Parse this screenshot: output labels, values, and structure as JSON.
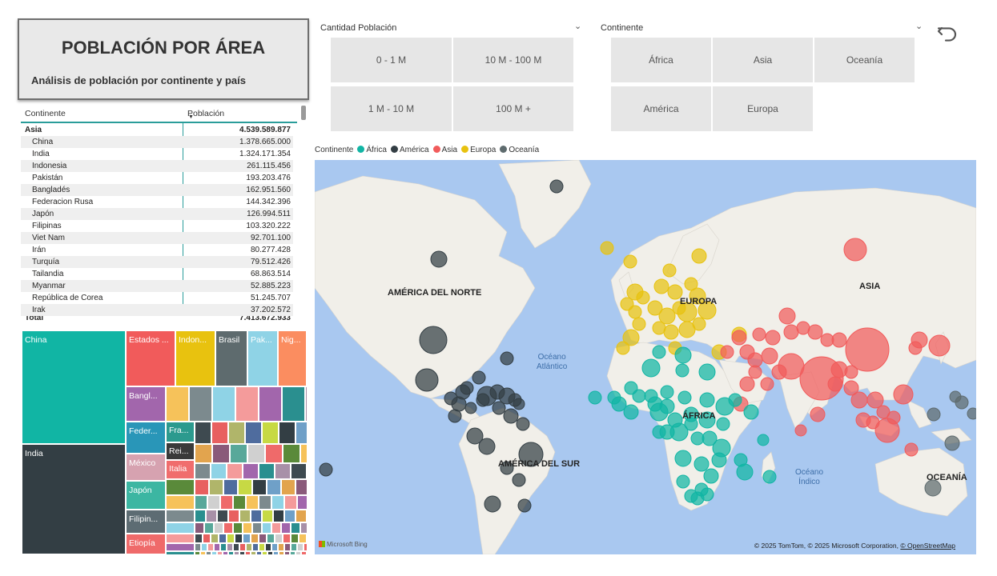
{
  "title": {
    "main": "POBLACIÓN POR ÁREA",
    "subtitle": "Análisis de población por continente y país"
  },
  "matrix": {
    "col_continent": "Continente",
    "col_population": "Población",
    "group": {
      "name": "Asia",
      "value": "4.539.589.877"
    },
    "rows": [
      {
        "name": "China",
        "value": "1.378.665.000"
      },
      {
        "name": "India",
        "value": "1.324.171.354"
      },
      {
        "name": "Indonesia",
        "value": "261.115.456"
      },
      {
        "name": "Pakistán",
        "value": "193.203.476"
      },
      {
        "name": "Bangladés",
        "value": "162.951.560"
      },
      {
        "name": "Federacion Rusa",
        "value": "144.342.396"
      },
      {
        "name": "Japón",
        "value": "126.994.511"
      },
      {
        "name": "Filipinas",
        "value": "103.320.222"
      },
      {
        "name": "Viet Nam",
        "value": "92.701.100"
      },
      {
        "name": "Irán",
        "value": "80.277.428"
      },
      {
        "name": "Turquía",
        "value": "79.512.426"
      },
      {
        "name": "Tailandia",
        "value": "68.863.514"
      },
      {
        "name": "Myanmar",
        "value": "52.885.223"
      },
      {
        "name": "República de Corea",
        "value": "51.245.707"
      },
      {
        "name": "Irak",
        "value": "37.202.572"
      }
    ],
    "total": {
      "name": "Total",
      "value": "7.413.672.933"
    }
  },
  "treemap": {
    "labels": [
      "China",
      "India",
      "Estados ...",
      "Indon...",
      "Brasil",
      "Pak...",
      "Nig...",
      "Bangl...",
      "Feder...",
      "México",
      "Japón",
      "Filipin...",
      "Etiopía",
      "Fra...",
      "Rei...",
      "Italia"
    ],
    "colors": {
      "china": "#11b5a4",
      "india": "#333e44",
      "estados": "#f15b5b",
      "indonesia": "#e8c20f",
      "brasil": "#5e6b6e",
      "pakistan": "#8fd3e6",
      "nigeria": "#fb8d60",
      "bangladesh": "#a266ac",
      "federacion": "#2996b8",
      "mexico": "#d6a2b0",
      "japon": "#3cb6a2",
      "filipinas": "#5d6c73",
      "etiopia": "#ef6a6a"
    }
  },
  "slicer_population": {
    "title": "Cantidad Población",
    "options": [
      "0 - 1 M",
      "10 M - 100 M",
      "1 M - 10 M",
      "100 M +"
    ]
  },
  "slicer_continent": {
    "title": "Continente",
    "options": [
      "África",
      "Asia",
      "Oceanía",
      "América",
      "Europa"
    ]
  },
  "legend": {
    "title": "Continente",
    "items": [
      {
        "name": "África",
        "color": "#11b5a4"
      },
      {
        "name": "América",
        "color": "#333e44"
      },
      {
        "name": "Asia",
        "color": "#f15b5b"
      },
      {
        "name": "Europa",
        "color": "#e8c20f"
      },
      {
        "name": "Oceanía",
        "color": "#5e6b6e"
      }
    ]
  },
  "map": {
    "regions": [
      "AMÉRICA DEL NORTE",
      "EUROPA",
      "ASIA",
      "ÁFRICA",
      "AMÉRICA DEL SUR",
      "OCEANÍA"
    ],
    "oceans": [
      {
        "line1": "Océano",
        "line2": "Atlántico"
      },
      {
        "line1": "Océano",
        "line2": "Índico"
      }
    ],
    "provider": "Microsoft Bing",
    "attribution": "© 2025 TomTom, © 2025 Microsoft Corporation,",
    "attribution_link": "© OpenStreetMap"
  },
  "icons": {
    "chevron": "chevron-down-icon",
    "back": "back-arrow-icon"
  }
}
